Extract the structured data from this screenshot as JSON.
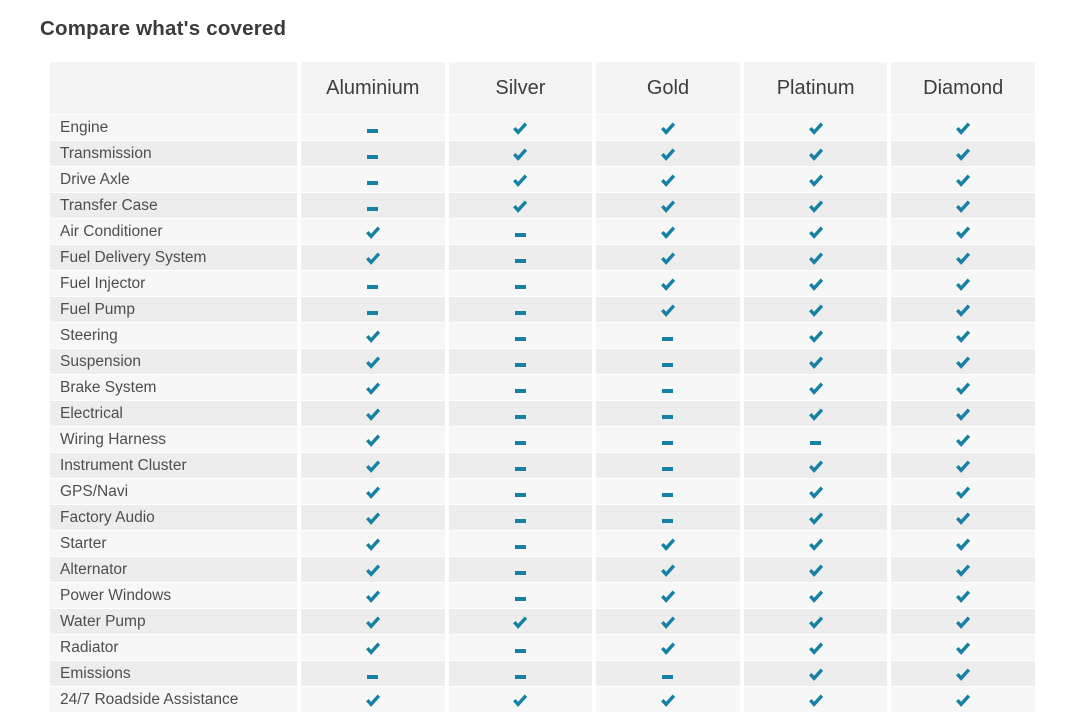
{
  "page": {
    "title": "Compare what's covered"
  },
  "table": {
    "columns": [
      "Aluminium",
      "Silver",
      "Gold",
      "Platinum",
      "Diamond"
    ],
    "icon_legend": {
      "covered": "check-icon",
      "not_covered": "dash-icon"
    },
    "rows": [
      {
        "label": "Engine",
        "values": [
          false,
          true,
          true,
          true,
          true
        ]
      },
      {
        "label": "Transmission",
        "values": [
          false,
          true,
          true,
          true,
          true
        ]
      },
      {
        "label": "Drive Axle",
        "values": [
          false,
          true,
          true,
          true,
          true
        ]
      },
      {
        "label": "Transfer Case",
        "values": [
          false,
          true,
          true,
          true,
          true
        ]
      },
      {
        "label": "Air Conditioner",
        "values": [
          true,
          false,
          true,
          true,
          true
        ]
      },
      {
        "label": "Fuel Delivery System",
        "values": [
          true,
          false,
          true,
          true,
          true
        ]
      },
      {
        "label": "Fuel Injector",
        "values": [
          false,
          false,
          true,
          true,
          true
        ]
      },
      {
        "label": "Fuel Pump",
        "values": [
          false,
          false,
          true,
          true,
          true
        ]
      },
      {
        "label": "Steering",
        "values": [
          true,
          false,
          false,
          true,
          true
        ]
      },
      {
        "label": "Suspension",
        "values": [
          true,
          false,
          false,
          true,
          true
        ]
      },
      {
        "label": "Brake System",
        "values": [
          true,
          false,
          false,
          true,
          true
        ]
      },
      {
        "label": "Electrical",
        "values": [
          true,
          false,
          false,
          true,
          true
        ]
      },
      {
        "label": "Wiring Harness",
        "values": [
          true,
          false,
          false,
          false,
          true
        ]
      },
      {
        "label": "Instrument Cluster",
        "values": [
          true,
          false,
          false,
          true,
          true
        ]
      },
      {
        "label": "GPS/Navi",
        "values": [
          true,
          false,
          false,
          true,
          true
        ]
      },
      {
        "label": "Factory Audio",
        "values": [
          true,
          false,
          false,
          true,
          true
        ]
      },
      {
        "label": "Starter",
        "values": [
          true,
          false,
          true,
          true,
          true
        ]
      },
      {
        "label": "Alternator",
        "values": [
          true,
          false,
          true,
          true,
          true
        ]
      },
      {
        "label": "Power Windows",
        "values": [
          true,
          false,
          true,
          true,
          true
        ]
      },
      {
        "label": "Water Pump",
        "values": [
          true,
          true,
          true,
          true,
          true
        ]
      },
      {
        "label": "Radiator",
        "values": [
          true,
          false,
          true,
          true,
          true
        ]
      },
      {
        "label": "Emissions",
        "values": [
          false,
          false,
          false,
          true,
          true
        ]
      },
      {
        "label": "24/7 Roadside Assistance",
        "values": [
          true,
          true,
          true,
          true,
          true
        ]
      }
    ]
  },
  "colors": {
    "accent_teal": "#1581a5",
    "header_bg": "#f4f4f4",
    "row_odd_bg": "#f7f7f7",
    "row_even_bg": "#ededed"
  }
}
